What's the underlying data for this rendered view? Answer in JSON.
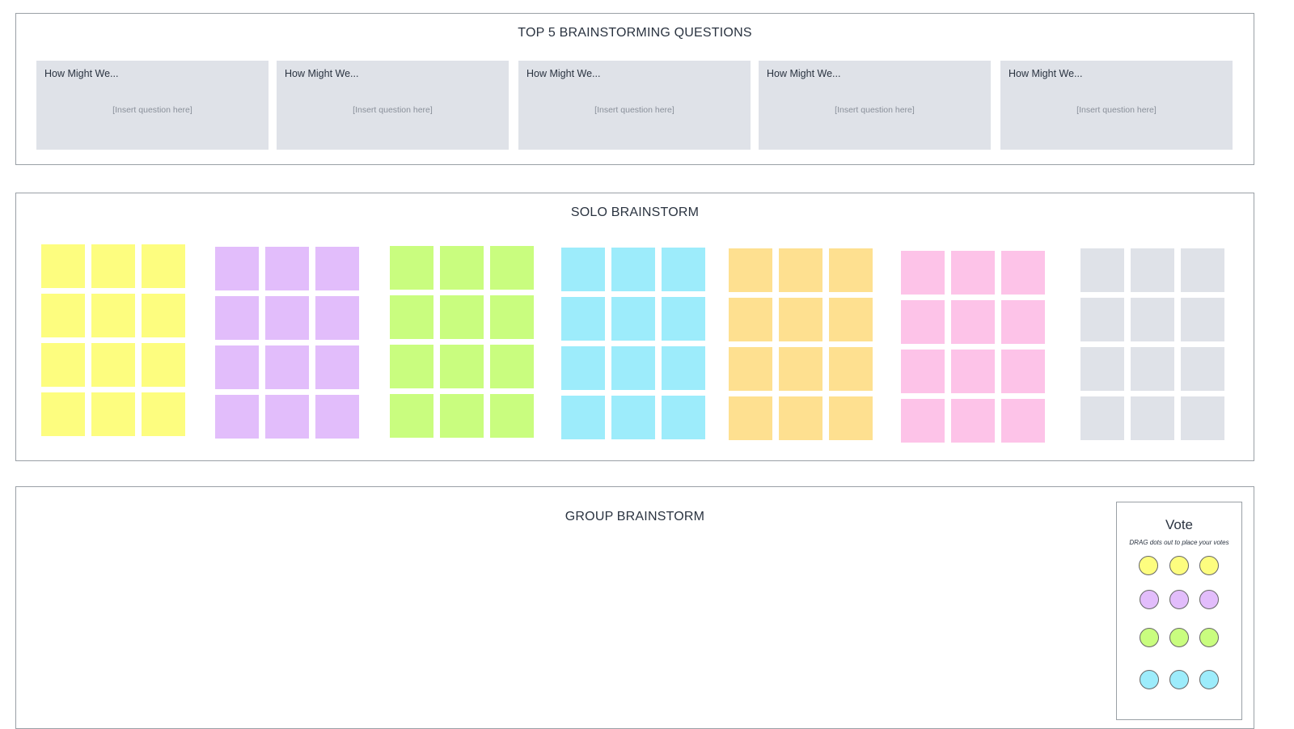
{
  "questions": {
    "title": "TOP 5 BRAINSTORMING QUESTIONS",
    "cards": [
      {
        "heading": "How Might We...",
        "placeholder": "[Insert question here]"
      },
      {
        "heading": "How Might We...",
        "placeholder": "[Insert question here]"
      },
      {
        "heading": "How Might We...",
        "placeholder": "[Insert question here]"
      },
      {
        "heading": "How Might We...",
        "placeholder": "[Insert question here]"
      },
      {
        "heading": "How Might We...",
        "placeholder": "[Insert question here]"
      }
    ]
  },
  "solo": {
    "title": "SOLO BRAINSTORM",
    "sticky_colors": [
      "#fdfd7f",
      "#e2bdfb",
      "#c9fd7f",
      "#9decfb",
      "#fee090",
      "#fdc3e8",
      "#dfe2e8"
    ]
  },
  "group": {
    "title": "GROUP BRAINSTORM",
    "vote": {
      "title": "Vote",
      "subtitle": "DRAG dots out to place your votes",
      "dot_colors": [
        "#fdfd7f",
        "#e2bdfb",
        "#c9fd7f",
        "#9decfb"
      ]
    }
  }
}
